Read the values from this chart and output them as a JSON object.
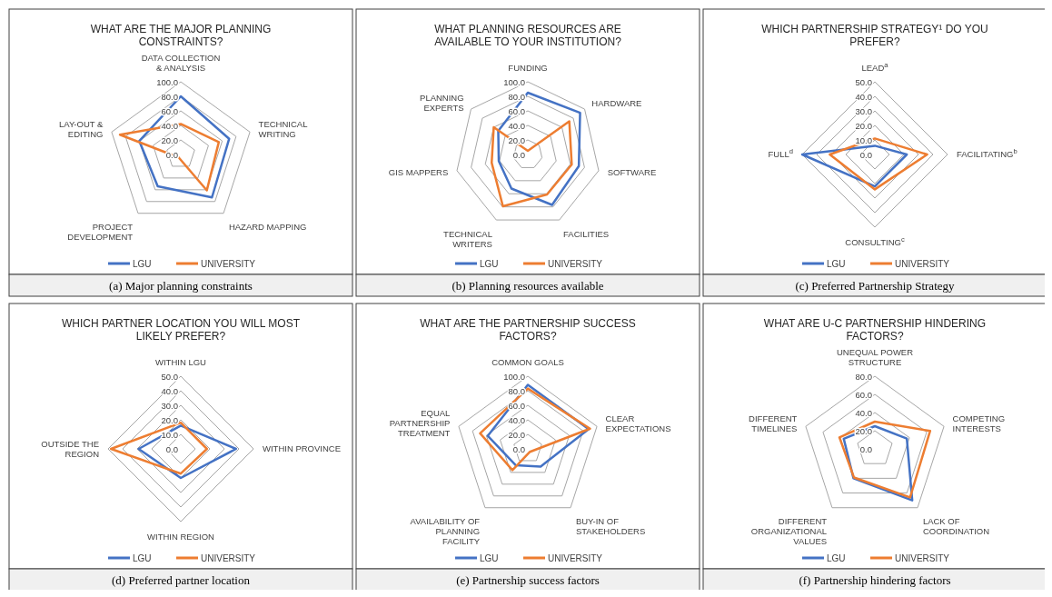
{
  "chart_data": [
    {
      "type": "radar",
      "title": "WHAT ARE THE MAJOR PLANNING CONSTRAINTS?",
      "categories": [
        "DATA COLLECTION & ANALYSIS",
        "TECHNICAL WRITING",
        "HAZARD MAPPING",
        "PROJECT DEVELOPMENT",
        "LAY-OUT & EDITING"
      ],
      "series": [
        {
          "name": "LGU",
          "color": "#4472c4",
          "values": [
            80,
            70,
            73,
            54,
            60
          ]
        },
        {
          "name": "UNIVERSITY",
          "color": "#ed7d31",
          "values": [
            42,
            55,
            61,
            5,
            88
          ]
        }
      ],
      "ylim": [
        0,
        100
      ],
      "yticks": [
        {
          "value": 0,
          "label": "0.0"
        },
        {
          "value": 20,
          "label": "20.0"
        },
        {
          "value": 40,
          "label": "40.0"
        },
        {
          "value": 60,
          "label": "60.0"
        },
        {
          "value": 80,
          "label": "80.0"
        },
        {
          "value": 100,
          "label": "100.0"
        }
      ],
      "grid": true,
      "legend": "bottom",
      "annotations": [
        "(a) Major planning constraints"
      ]
    },
    {
      "type": "radar",
      "title": "WHAT PLANNING RESOURCES ARE AVAILABLE TO YOUR INSTITUTION?",
      "categories": [
        "FUNDING",
        "HARDWARE",
        "SOFTWARE",
        "FACILITIES",
        "TECHNICAL WRITERS",
        "GIS MAPPERS",
        "PLANNING EXPERTS"
      ],
      "series": [
        {
          "name": "LGU",
          "color": "#4472c4",
          "values": [
            85,
            92,
            72,
            77,
            52,
            41,
            52
          ]
        },
        {
          "name": "UNIVERSITY",
          "color": "#ed7d31",
          "values": [
            5,
            73,
            62,
            61,
            79,
            51,
            60
          ]
        }
      ],
      "ylim": [
        0,
        100
      ],
      "yticks": [
        {
          "value": 0,
          "label": "0.0"
        },
        {
          "value": 20,
          "label": "20.0"
        },
        {
          "value": 40,
          "label": "40.0"
        },
        {
          "value": 60,
          "label": "60.0"
        },
        {
          "value": 80,
          "label": "80.0"
        },
        {
          "value": 100,
          "label": "100.0"
        }
      ],
      "grid": true,
      "legend": "bottom",
      "annotations": [
        "(b) Planning resources available"
      ]
    },
    {
      "type": "radar",
      "title": "WHICH PARTNERSHIP STRATEGY¹ DO YOU PREFER?",
      "categories": [
        "LEAD$^{a}$",
        "FACILITATING$^{b}$",
        "CONSULTING$^{c}$",
        "FULL$^{d}$"
      ],
      "series": [
        {
          "name": "LGU",
          "color": "#4472c4",
          "values": [
            6,
            22,
            22,
            50
          ]
        },
        {
          "name": "UNIVERSITY",
          "color": "#ed7d31",
          "values": [
            11,
            36,
            24,
            31
          ]
        }
      ],
      "ylim": [
        0,
        50
      ],
      "yticks": [
        {
          "value": 0,
          "label": "0.0"
        },
        {
          "value": 10,
          "label": "10.0"
        },
        {
          "value": 20,
          "label": "20.0"
        },
        {
          "value": 30,
          "label": "30.0"
        },
        {
          "value": 40,
          "label": "40.0"
        },
        {
          "value": 50,
          "label": "50.0"
        }
      ],
      "grid": true,
      "legend": "bottom",
      "annotations": [
        "(c) Preferred Partnership Strategy"
      ]
    },
    {
      "type": "radar",
      "title": "WHICH PARTNER LOCATION YOU WILL MOST LIKELY PREFER?",
      "categories": [
        "WITHIN LGU",
        "WITHIN PROVINCE",
        "WITHIN REGION",
        "OUTSIDE THE REGION"
      ],
      "series": [
        {
          "name": "LGU",
          "color": "#4472c4",
          "values": [
            16,
            38,
            20,
            29
          ]
        },
        {
          "name": "UNIVERSITY",
          "color": "#ed7d31",
          "values": [
            18,
            18,
            17,
            48
          ]
        }
      ],
      "ylim": [
        0,
        50
      ],
      "yticks": [
        {
          "value": 0,
          "label": "0.0"
        },
        {
          "value": 10,
          "label": "10.0"
        },
        {
          "value": 20,
          "label": "20.0"
        },
        {
          "value": 30,
          "label": "30.0"
        },
        {
          "value": 40,
          "label": "40.0"
        },
        {
          "value": 50,
          "label": "50.0"
        }
      ],
      "grid": true,
      "legend": "bottom",
      "annotations": [
        "(d) Preferred partner location"
      ]
    },
    {
      "type": "radar",
      "title": "WHAT ARE THE PARTNERSHIP SUCCESS FACTORS?",
      "categories": [
        "COMMON GOALS",
        "CLEAR EXPECTATIONS",
        "BUY-IN OF STAKEHOLDERS",
        "AVAILABILITY OF PLANNING FACILITY",
        "EQUAL PARTNERSHIP TREATMENT"
      ],
      "series": [
        {
          "name": "LGU",
          "color": "#4472c4",
          "values": [
            88,
            88,
            30,
            28,
            58
          ]
        },
        {
          "name": "UNIVERSITY",
          "color": "#ed7d31",
          "values": [
            83,
            90,
            5,
            36,
            69
          ]
        }
      ],
      "ylim": [
        0,
        100
      ],
      "yticks": [
        {
          "value": 0,
          "label": "0.0"
        },
        {
          "value": 20,
          "label": "20.0"
        },
        {
          "value": 40,
          "label": "40.0"
        },
        {
          "value": 60,
          "label": "60.0"
        },
        {
          "value": 80,
          "label": "80.0"
        },
        {
          "value": 100,
          "label": "100.0"
        }
      ],
      "grid": true,
      "legend": "bottom",
      "annotations": [
        "(e) Partnership success factors"
      ]
    },
    {
      "type": "radar",
      "title": "WHAT ARE U-C PARTNERSHIP HINDERING FACTORS?",
      "categories": [
        "UNEQUAL POWER STRUCTURE",
        "COMPETING INTERESTS",
        "LACK OF COORDINATION",
        "DIFFERENT ORGANIZATIONAL VALUES",
        "DIFFERENT TIMELINES"
      ],
      "series": [
        {
          "name": "LGU",
          "color": "#4472c4",
          "values": [
            25,
            37,
            70,
            40,
            36
          ]
        },
        {
          "name": "UNIVERSITY",
          "color": "#ed7d31",
          "values": [
            30,
            64,
            66,
            39,
            41
          ]
        }
      ],
      "ylim": [
        0,
        80
      ],
      "yticks": [
        {
          "value": 0,
          "label": "0.0"
        },
        {
          "value": 20,
          "label": "20.0"
        },
        {
          "value": 40,
          "label": "40.0"
        },
        {
          "value": 60,
          "label": "60.0"
        },
        {
          "value": 80,
          "label": "80.0"
        }
      ],
      "grid": true,
      "legend": "bottom",
      "annotations": [
        "(f) Partnership hindering factors"
      ]
    }
  ]
}
